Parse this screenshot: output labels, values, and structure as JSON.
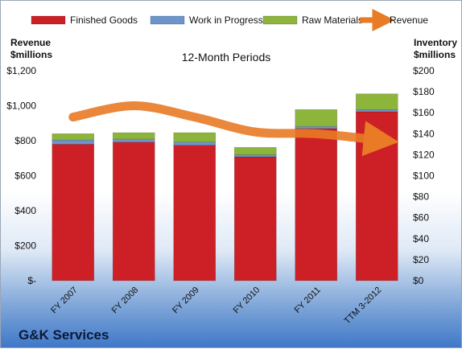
{
  "company_name": "G&K Services",
  "chart_data": {
    "type": "bar",
    "title": "12-Month Periods",
    "left_axis_label": [
      "Revenue",
      "$millions"
    ],
    "right_axis_label": [
      "Inventory",
      "$millions"
    ],
    "categories": [
      "FY 2007",
      "FY 2008",
      "FY 2009",
      "FY 2010",
      "FY 2011",
      "TTM 3-2012"
    ],
    "stacked": true,
    "series": [
      {
        "name": "Finished Goods",
        "axis": "right",
        "color": "#cc2026",
        "values": [
          130,
          132,
          129,
          118,
          145,
          161
        ]
      },
      {
        "name": "Work in Progress",
        "axis": "right",
        "color": "#6d95cc",
        "values": [
          4,
          3,
          3,
          2,
          2,
          2
        ]
      },
      {
        "name": "Raw Materials",
        "axis": "right",
        "color": "#8db53b",
        "values": [
          6,
          6,
          9,
          7,
          16,
          15
        ]
      },
      {
        "name": "Revenue",
        "axis": "left",
        "type": "line",
        "color": "#e97a26",
        "values": [
          935,
          1000,
          935,
          850,
          840,
          805
        ]
      }
    ],
    "ylim_left": [
      0,
      1200
    ],
    "ylim_right": [
      0,
      200
    ],
    "left_ticks": [
      "$-",
      "$200",
      "$400",
      "$600",
      "$800",
      "$1,000",
      "$1,200"
    ],
    "right_ticks": [
      "$0",
      "$20",
      "$40",
      "$60",
      "$80",
      "$100",
      "$120",
      "$140",
      "$160",
      "$180",
      "$200"
    ],
    "legend_position": "top",
    "grid": false
  }
}
